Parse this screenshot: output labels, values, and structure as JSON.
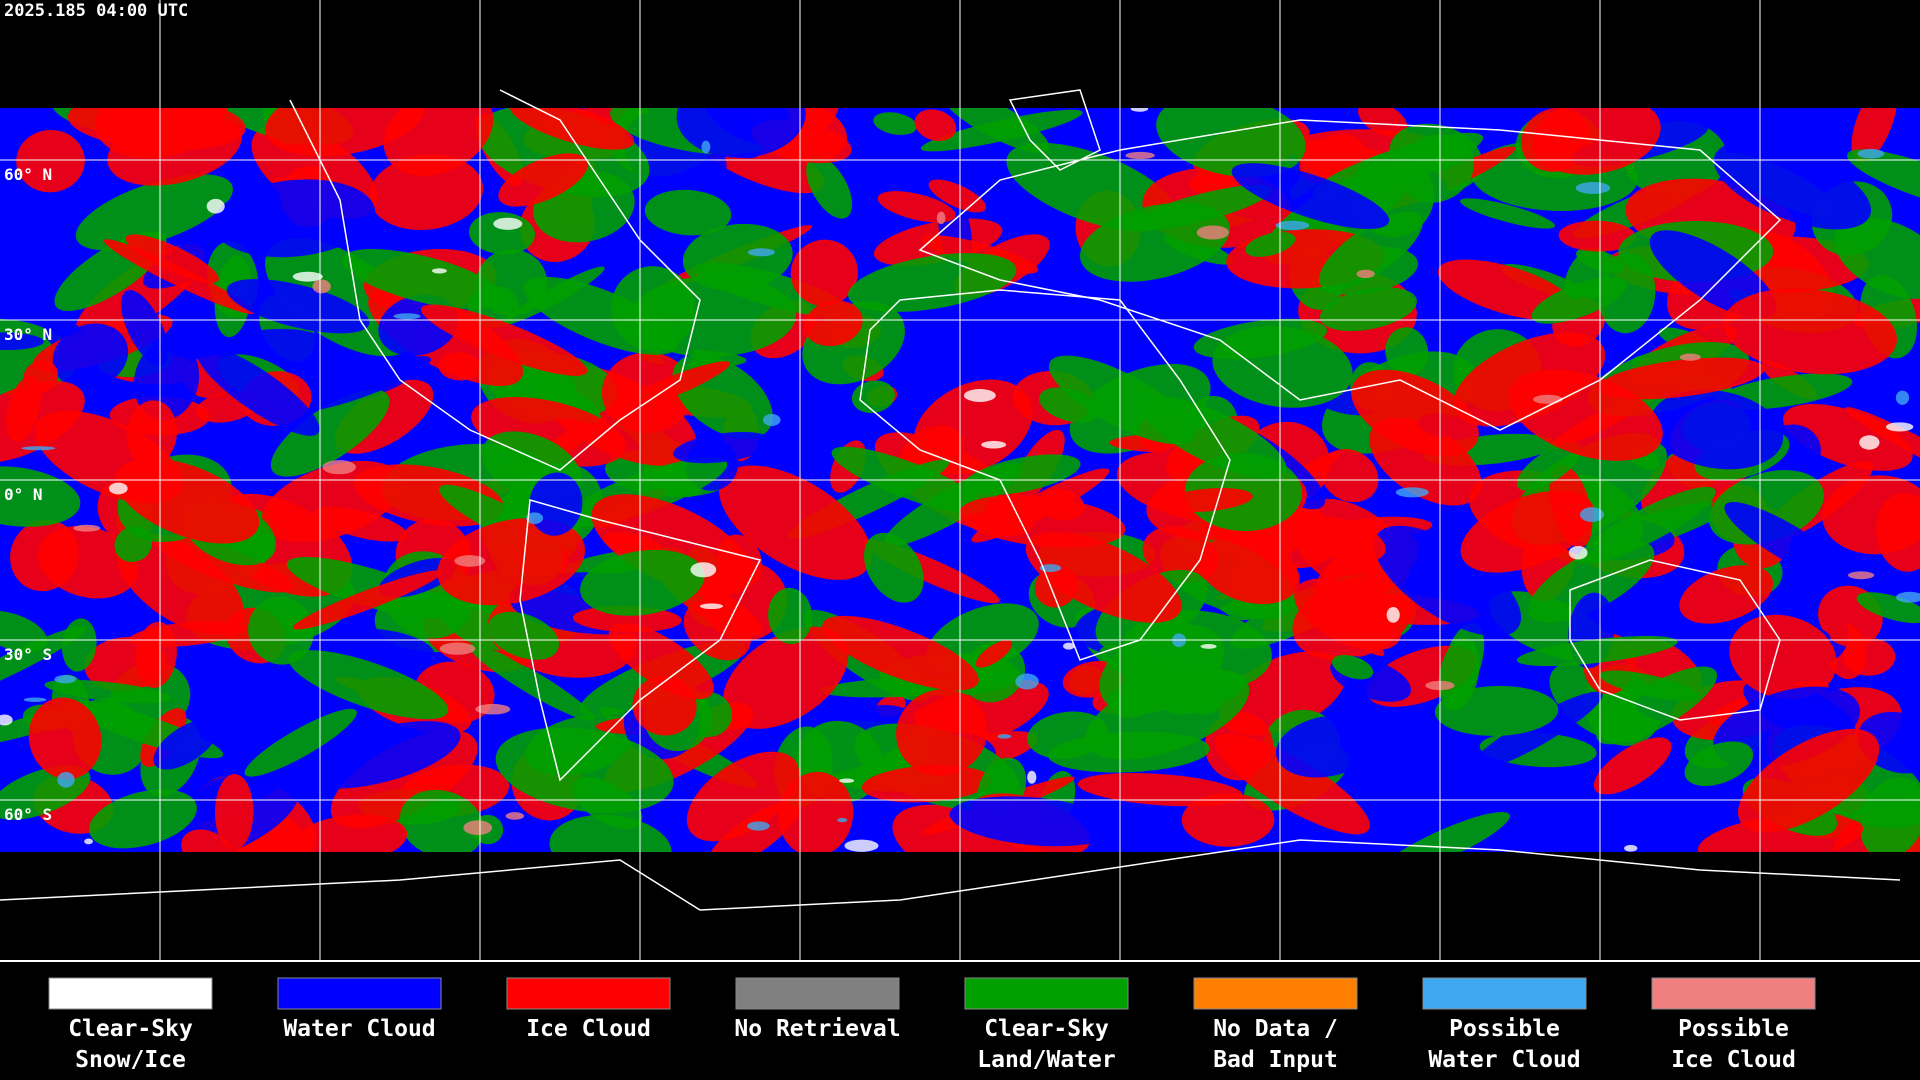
{
  "header": {
    "timestamp": "2025.185 04:00 UTC"
  },
  "latitude_labels": [
    {
      "label": "60° N",
      "lat": 60
    },
    {
      "label": "30° N",
      "lat": 30
    },
    {
      "label": "0° N",
      "lat": 0
    },
    {
      "label": "30° S",
      "lat": -30
    },
    {
      "label": "60° S",
      "lat": -60
    }
  ],
  "legend": [
    {
      "lines": [
        "Clear-Sky",
        "Snow/Ice"
      ],
      "color": "#ffffff"
    },
    {
      "lines": [
        "Water Cloud"
      ],
      "color": "#0000ff"
    },
    {
      "lines": [
        "Ice Cloud"
      ],
      "color": "#ff0000"
    },
    {
      "lines": [
        "No Retrieval"
      ],
      "color": "#808080"
    },
    {
      "lines": [
        "Clear-Sky",
        "Land/Water"
      ],
      "color": "#00a000"
    },
    {
      "lines": [
        "No Data /",
        "Bad Input"
      ],
      "color": "#ff8000"
    },
    {
      "lines": [
        "Possible",
        "Water Cloud"
      ],
      "color": "#40a8f0"
    },
    {
      "lines": [
        "Possible",
        "Ice Cloud"
      ],
      "color": "#f08080"
    }
  ]
}
